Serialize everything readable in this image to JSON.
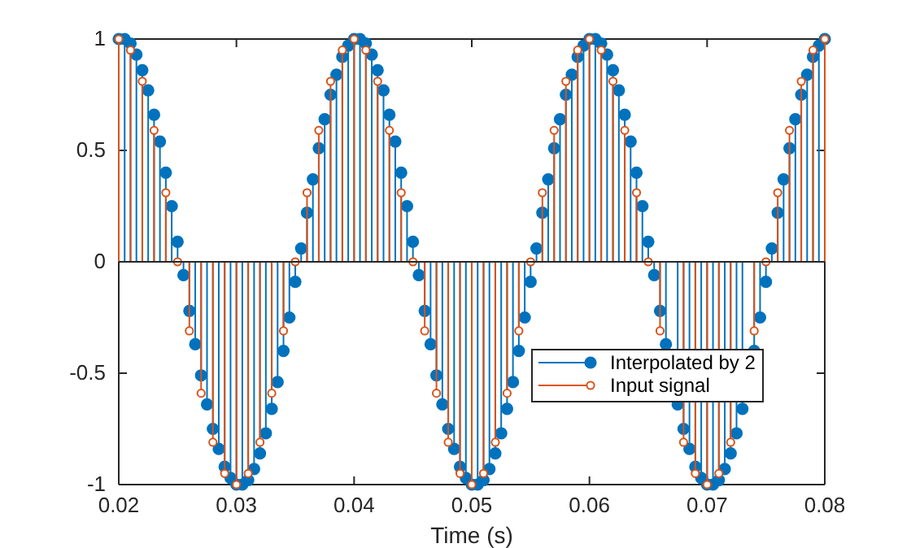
{
  "chart_data": {
    "type": "lollipop",
    "xlabel": "Time (s)",
    "xlim": [
      0.02,
      0.08
    ],
    "xticks": [
      0.02,
      0.03,
      0.04,
      0.05,
      0.06,
      0.07,
      0.08
    ],
    "ylim": [
      -1,
      1
    ],
    "yticks": [
      -1,
      -0.5,
      0,
      0.5,
      1
    ],
    "grid": false,
    "legend": "bottom right",
    "marker": "circle",
    "ref_lines": [
      {
        "axis": "y",
        "value": 0,
        "color": "#262626"
      }
    ],
    "series": [
      {
        "name": "Interpolated by 2",
        "color": "#0072bd",
        "x": [
          0.02,
          0.0205,
          0.021,
          0.0215,
          0.022,
          0.0225,
          0.023,
          0.0235,
          0.024,
          0.0245,
          0.025,
          0.0255,
          0.026,
          0.0265,
          0.027,
          0.0275,
          0.028,
          0.0285,
          0.029,
          0.0295,
          0.03,
          0.0305,
          0.031,
          0.0315,
          0.032,
          0.0325,
          0.033,
          0.0335,
          0.034,
          0.0345,
          0.035,
          0.0355,
          0.036,
          0.0365,
          0.037,
          0.0375,
          0.038,
          0.0385,
          0.039,
          0.0395,
          0.04,
          0.0405,
          0.041,
          0.0415,
          0.042,
          0.0425,
          0.043,
          0.0435,
          0.044,
          0.0445,
          0.045,
          0.0455,
          0.046,
          0.0465,
          0.047,
          0.0475,
          0.048,
          0.0485,
          0.049,
          0.0495,
          0.05,
          0.0505,
          0.051,
          0.0515,
          0.052,
          0.0525,
          0.053,
          0.0535,
          0.054,
          0.0545,
          0.055,
          0.0555,
          0.056,
          0.0565,
          0.057,
          0.0575,
          0.058,
          0.0585,
          0.059,
          0.0595,
          0.06,
          0.0605,
          0.061,
          0.0615,
          0.062,
          0.0625,
          0.063,
          0.0635,
          0.064,
          0.0645,
          0.065,
          0.0655,
          0.066,
          0.0665,
          0.0675,
          0.068,
          0.0685,
          0.069,
          0.0695,
          0.07,
          0.0705,
          0.071,
          0.0715,
          0.072,
          0.0725,
          0.073,
          0.074,
          0.0745,
          0.075,
          0.0755,
          0.076,
          0.0765,
          0.077,
          0.0775,
          0.078,
          0.0785,
          0.079,
          0.0795,
          0.08
        ],
        "values": [
          1.0,
          1.0,
          0.98,
          0.93,
          0.86,
          0.77,
          0.66,
          0.54,
          0.4,
          0.25,
          0.09,
          -0.06,
          -0.22,
          -0.37,
          -0.51,
          -0.64,
          -0.75,
          -0.84,
          -0.92,
          -0.97,
          -1.0,
          -1.0,
          -0.98,
          -0.93,
          -0.86,
          -0.77,
          -0.66,
          -0.54,
          -0.4,
          -0.25,
          -0.09,
          0.06,
          0.22,
          0.37,
          0.51,
          0.64,
          0.75,
          0.84,
          0.92,
          0.97,
          1.0,
          1.0,
          0.98,
          0.93,
          0.86,
          0.77,
          0.66,
          0.54,
          0.4,
          0.25,
          0.09,
          -0.06,
          -0.22,
          -0.37,
          -0.51,
          -0.64,
          -0.75,
          -0.84,
          -0.92,
          -0.97,
          -1.0,
          -1.0,
          -0.98,
          -0.93,
          -0.86,
          -0.77,
          -0.66,
          -0.54,
          -0.4,
          -0.25,
          -0.09,
          0.06,
          0.22,
          0.37,
          0.51,
          0.64,
          0.75,
          0.84,
          0.92,
          0.97,
          1.0,
          1.0,
          0.98,
          0.93,
          0.86,
          0.77,
          0.66,
          0.54,
          0.4,
          0.25,
          0.09,
          -0.06,
          -0.22,
          -0.37,
          -0.64,
          -0.75,
          -0.84,
          -0.92,
          -0.97,
          -1.0,
          -1.0,
          -0.98,
          -0.93,
          -0.86,
          -0.77,
          -0.66,
          -0.4,
          -0.25,
          -0.09,
          0.06,
          0.22,
          0.37,
          0.51,
          0.64,
          0.75,
          0.84,
          0.92,
          0.97,
          1.0
        ]
      },
      {
        "name": "Input signal",
        "color": "#d95319",
        "x": [
          0.02,
          0.021,
          0.022,
          0.023,
          0.024,
          0.025,
          0.026,
          0.027,
          0.028,
          0.029,
          0.03,
          0.031,
          0.032,
          0.033,
          0.034,
          0.035,
          0.036,
          0.037,
          0.038,
          0.039,
          0.04,
          0.041,
          0.042,
          0.043,
          0.044,
          0.045,
          0.046,
          0.047,
          0.048,
          0.049,
          0.05,
          0.051,
          0.052,
          0.053,
          0.054,
          0.055,
          0.056,
          0.057,
          0.058,
          0.059,
          0.06,
          0.061,
          0.062,
          0.063,
          0.064,
          0.065,
          0.066,
          0.068,
          0.069,
          0.07,
          0.071,
          0.072,
          0.074,
          0.075,
          0.076,
          0.077,
          0.078,
          0.079,
          0.08
        ],
        "values": [
          1,
          0.95,
          0.81,
          0.59,
          0.31,
          0,
          -0.31,
          -0.59,
          -0.81,
          -0.95,
          -1,
          -0.95,
          -0.81,
          -0.59,
          -0.31,
          0,
          0.31,
          0.59,
          0.81,
          0.95,
          1,
          0.95,
          0.81,
          0.59,
          0.31,
          0,
          -0.31,
          -0.59,
          -0.81,
          -0.95,
          -1,
          -0.95,
          -0.81,
          -0.59,
          -0.31,
          0,
          0.31,
          0.59,
          0.81,
          0.95,
          1,
          0.95,
          0.81,
          0.59,
          0.31,
          0,
          -0.31,
          -0.81,
          -0.95,
          -1,
          -0.95,
          -0.81,
          -0.31,
          0,
          0.31,
          0.59,
          0.81,
          0.95,
          1
        ]
      }
    ]
  }
}
